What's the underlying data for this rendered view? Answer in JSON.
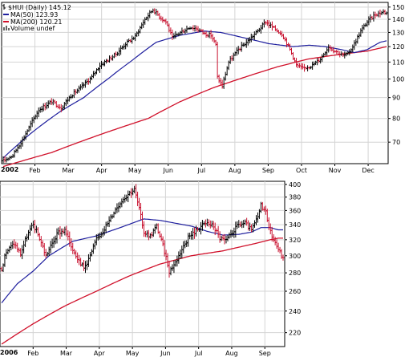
{
  "chart_data": [
    {
      "type": "ohlc",
      "title": "$HUI (Daily) 145.12",
      "year_label": "2002",
      "legend": [
        {
          "name": "MA(50) 123.93",
          "color": "#1f1f9e",
          "icon": "line-swatch"
        },
        {
          "name": "MA(200) 120.21",
          "color": "#d0102a",
          "icon": "line-swatch"
        },
        {
          "name": "Volume undef",
          "color": "#666666",
          "icon": "volume-bars"
        }
      ],
      "x_ticks": [
        "Feb",
        "Mar",
        "Apr",
        "May",
        "Jun",
        "Jul",
        "Aug",
        "Sep",
        "Oct",
        "Nov",
        "Dec"
      ],
      "y_ticks": [
        70,
        80,
        90,
        100,
        110,
        120,
        130,
        140,
        150
      ],
      "yscale": "log",
      "ylim": [
        62,
        154
      ],
      "grid": true,
      "price_anchors": [
        [
          0,
          63
        ],
        [
          6,
          65
        ],
        [
          12,
          71
        ],
        [
          16,
          76
        ],
        [
          22,
          84
        ],
        [
          26,
          86
        ],
        [
          30,
          88
        ],
        [
          36,
          85
        ],
        [
          42,
          91
        ],
        [
          48,
          95
        ],
        [
          55,
          101
        ],
        [
          60,
          108
        ],
        [
          66,
          112
        ],
        [
          70,
          115
        ],
        [
          76,
          122
        ],
        [
          82,
          127
        ],
        [
          88,
          140
        ],
        [
          93,
          148
        ],
        [
          97,
          142
        ],
        [
          101,
          138
        ],
        [
          105,
          126
        ],
        [
          110,
          130
        ],
        [
          116,
          134
        ],
        [
          120,
          133
        ],
        [
          125,
          129
        ],
        [
          129,
          128
        ],
        [
          132,
          121
        ],
        [
          133,
          101
        ],
        [
          136,
          96
        ],
        [
          140,
          110
        ],
        [
          146,
          118
        ],
        [
          152,
          124
        ],
        [
          158,
          131
        ],
        [
          163,
          138
        ],
        [
          168,
          133
        ],
        [
          173,
          129
        ],
        [
          178,
          118
        ],
        [
          182,
          108
        ],
        [
          186,
          106
        ],
        [
          192,
          108
        ],
        [
          197,
          112
        ],
        [
          202,
          120
        ],
        [
          206,
          117
        ],
        [
          211,
          114
        ],
        [
          214,
          115
        ],
        [
          218,
          122
        ],
        [
          222,
          131
        ],
        [
          226,
          138
        ],
        [
          231,
          144
        ],
        [
          236,
          146
        ],
        [
          238,
          145
        ]
      ],
      "ma50_anchors": [
        [
          0,
          64
        ],
        [
          18,
          74
        ],
        [
          35,
          83
        ],
        [
          50,
          90
        ],
        [
          65,
          100
        ],
        [
          80,
          111
        ],
        [
          95,
          123
        ],
        [
          110,
          128
        ],
        [
          125,
          131
        ],
        [
          135,
          130
        ],
        [
          150,
          126
        ],
        [
          165,
          122
        ],
        [
          180,
          120
        ],
        [
          190,
          121
        ],
        [
          200,
          120
        ],
        [
          210,
          118
        ],
        [
          218,
          116
        ],
        [
          226,
          118
        ],
        [
          234,
          123
        ],
        [
          238,
          124
        ]
      ],
      "ma200_anchors": [
        [
          0,
          61
        ],
        [
          30,
          66
        ],
        [
          60,
          73
        ],
        [
          90,
          80
        ],
        [
          110,
          88
        ],
        [
          130,
          95
        ],
        [
          150,
          101
        ],
        [
          170,
          107
        ],
        [
          190,
          112
        ],
        [
          210,
          115
        ],
        [
          226,
          117
        ],
        [
          238,
          120
        ]
      ]
    },
    {
      "type": "ohlc",
      "year_label": "2006",
      "x_ticks": [
        "Feb",
        "Mar",
        "Apr",
        "May",
        "Jun",
        "Jul",
        "Aug",
        "Sep"
      ],
      "y_ticks": [
        220,
        240,
        260,
        280,
        300,
        320,
        340,
        360,
        380,
        400
      ],
      "yscale": "log",
      "ylim": [
        208,
        405
      ],
      "grid": true,
      "price_anchors": [
        [
          0,
          285
        ],
        [
          3,
          305
        ],
        [
          8,
          315
        ],
        [
          12,
          302
        ],
        [
          16,
          325
        ],
        [
          20,
          340
        ],
        [
          24,
          322
        ],
        [
          28,
          300
        ],
        [
          32,
          315
        ],
        [
          36,
          330
        ],
        [
          40,
          332
        ],
        [
          44,
          312
        ],
        [
          48,
          298
        ],
        [
          52,
          285
        ],
        [
          56,
          300
        ],
        [
          60,
          320
        ],
        [
          64,
          332
        ],
        [
          68,
          345
        ],
        [
          72,
          362
        ],
        [
          76,
          375
        ],
        [
          80,
          385
        ],
        [
          84,
          392
        ],
        [
          87,
          362
        ],
        [
          90,
          330
        ],
        [
          94,
          325
        ],
        [
          98,
          338
        ],
        [
          102,
          312
        ],
        [
          104,
          298
        ],
        [
          106,
          282
        ],
        [
          110,
          292
        ],
        [
          114,
          308
        ],
        [
          118,
          322
        ],
        [
          122,
          330
        ],
        [
          126,
          338
        ],
        [
          130,
          342
        ],
        [
          134,
          338
        ],
        [
          138,
          322
        ],
        [
          142,
          318
        ],
        [
          146,
          330
        ],
        [
          150,
          340
        ],
        [
          154,
          342
        ],
        [
          158,
          332
        ],
        [
          162,
          350
        ],
        [
          164,
          368
        ],
        [
          167,
          358
        ],
        [
          170,
          330
        ],
        [
          174,
          312
        ],
        [
          178,
          296
        ]
      ],
      "ma50_anchors": [
        [
          0,
          248
        ],
        [
          10,
          268
        ],
        [
          20,
          282
        ],
        [
          30,
          300
        ],
        [
          45,
          318
        ],
        [
          60,
          325
        ],
        [
          75,
          336
        ],
        [
          90,
          348
        ],
        [
          100,
          346
        ],
        [
          110,
          342
        ],
        [
          120,
          338
        ],
        [
          130,
          331
        ],
        [
          140,
          326
        ],
        [
          150,
          327
        ],
        [
          158,
          330
        ],
        [
          164,
          336
        ],
        [
          170,
          336
        ],
        [
          175,
          333
        ]
      ],
      "ma200_anchors": [
        [
          0,
          210
        ],
        [
          20,
          228
        ],
        [
          40,
          245
        ],
        [
          60,
          260
        ],
        [
          80,
          276
        ],
        [
          100,
          290
        ],
        [
          120,
          300
        ],
        [
          140,
          306
        ],
        [
          160,
          315
        ],
        [
          170,
          320
        ],
        [
          175,
          322
        ]
      ]
    }
  ]
}
